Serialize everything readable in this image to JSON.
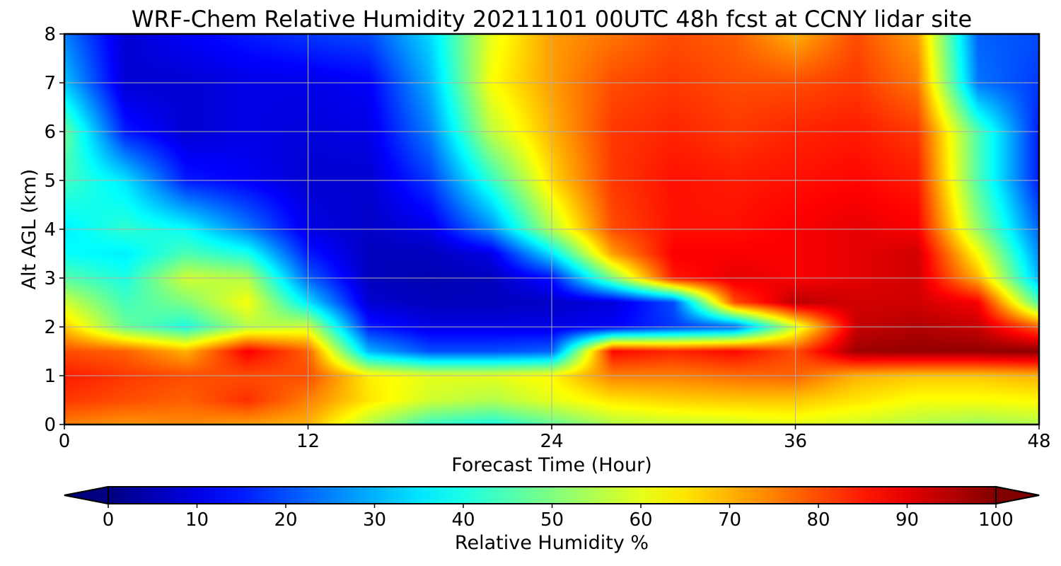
{
  "chart_data": {
    "type": "heatmap",
    "title": "WRF-Chem Relative Humidity 20211101 00UTC 48h fcst at CCNY lidar site",
    "xlabel": "Forecast Time (Hour)",
    "ylabel": "Alt AGL (km)",
    "xlim": [
      0,
      48
    ],
    "ylim": [
      0,
      8
    ],
    "x_ticks": [
      0,
      12,
      24,
      36,
      48
    ],
    "y_ticks": [
      0,
      1,
      2,
      3,
      4,
      5,
      6,
      7,
      8
    ],
    "grid": true,
    "colormap": "jet",
    "colorbar": {
      "label": "Relative Humidity %",
      "range": [
        0,
        100
      ],
      "ticks": [
        0,
        10,
        20,
        30,
        40,
        50,
        60,
        70,
        80,
        90,
        100
      ],
      "extend": "both",
      "orientation": "horizontal"
    },
    "x": [
      0,
      3,
      6,
      9,
      12,
      15,
      18,
      21,
      24,
      27,
      30,
      33,
      36,
      39,
      42,
      45,
      48
    ],
    "y": [
      0,
      0.5,
      1,
      1.5,
      2,
      2.5,
      3,
      3.5,
      4,
      5,
      6,
      7,
      8
    ],
    "z": [
      [
        75,
        73,
        74,
        72,
        70,
        55,
        43,
        40,
        47,
        55,
        57,
        58,
        60,
        58,
        55,
        53,
        55
      ],
      [
        82,
        80,
        78,
        83,
        75,
        65,
        58,
        55,
        60,
        65,
        67,
        68,
        68,
        65,
        62,
        62,
        63
      ],
      [
        85,
        82,
        80,
        80,
        80,
        64,
        60,
        60,
        63,
        75,
        75,
        77,
        78,
        70,
        68,
        68,
        70
      ],
      [
        80,
        78,
        70,
        88,
        78,
        30,
        20,
        20,
        22,
        87,
        84,
        87,
        80,
        97,
        98,
        98,
        99
      ],
      [
        68,
        48,
        40,
        55,
        58,
        15,
        10,
        10,
        10,
        12,
        18,
        22,
        58,
        93,
        95,
        93,
        78
      ],
      [
        58,
        44,
        50,
        62,
        35,
        8,
        6,
        6,
        7,
        9,
        20,
        80,
        94,
        92,
        92,
        88,
        45
      ],
      [
        46,
        40,
        58,
        55,
        22,
        6,
        5,
        6,
        14,
        50,
        85,
        90,
        88,
        90,
        92,
        70,
        30
      ],
      [
        38,
        36,
        45,
        40,
        15,
        6,
        6,
        10,
        35,
        72,
        88,
        88,
        88,
        90,
        92,
        62,
        26
      ],
      [
        36,
        42,
        38,
        25,
        10,
        7,
        10,
        26,
        55,
        80,
        86,
        86,
        88,
        90,
        88,
        52,
        22
      ],
      [
        44,
        35,
        15,
        12,
        8,
        8,
        18,
        42,
        66,
        82,
        86,
        85,
        86,
        87,
        85,
        45,
        15
      ],
      [
        48,
        15,
        8,
        10,
        9,
        10,
        25,
        56,
        70,
        82,
        84,
        82,
        84,
        85,
        82,
        45,
        15
      ],
      [
        32,
        8,
        8,
        10,
        10,
        12,
        30,
        62,
        72,
        80,
        82,
        80,
        80,
        82,
        76,
        24,
        18
      ],
      [
        25,
        8,
        12,
        15,
        18,
        20,
        34,
        60,
        72,
        76,
        80,
        78,
        70,
        80,
        72,
        22,
        20
      ]
    ]
  }
}
